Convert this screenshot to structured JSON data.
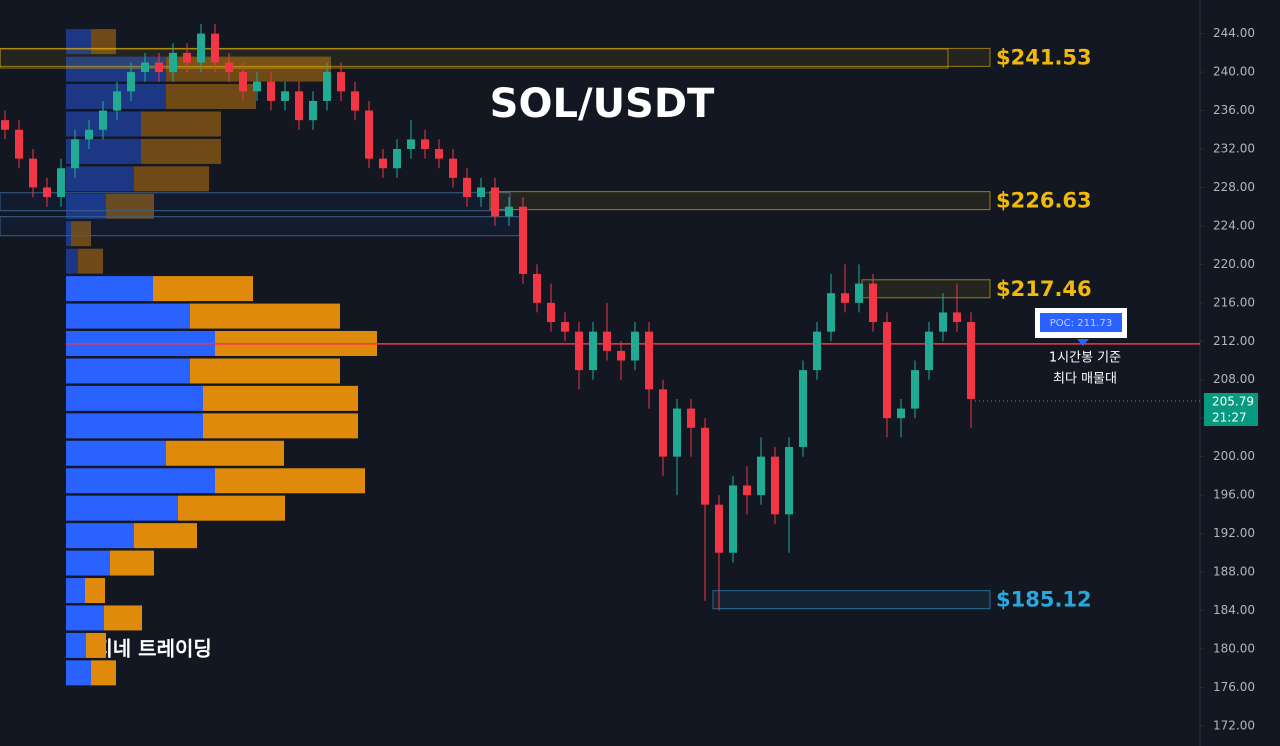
{
  "chart_data": {
    "type": "candlestick",
    "title": "SOL/USDT",
    "watermark": "곰지네 트레이딩",
    "ylim": [
      169.9,
      247.5
    ],
    "yticks": [
      {
        "value": 172,
        "label": "172.00"
      },
      {
        "value": 176,
        "label": "176.00"
      },
      {
        "value": 180,
        "label": "180.00"
      },
      {
        "value": 184,
        "label": "184.00"
      },
      {
        "value": 188,
        "label": "188.00"
      },
      {
        "value": 192,
        "label": "192.00"
      },
      {
        "value": 196,
        "label": "196.00"
      },
      {
        "value": 200,
        "label": "200.00"
      },
      {
        "value": 204,
        "label": "204.00"
      },
      {
        "value": 208,
        "label": "208.00"
      },
      {
        "value": 212,
        "label": "212.00"
      },
      {
        "value": 216,
        "label": "216.00"
      },
      {
        "value": 220,
        "label": "220.00"
      },
      {
        "value": 224,
        "label": "224.00"
      },
      {
        "value": 228,
        "label": "228.00"
      },
      {
        "value": 232,
        "label": "232.00"
      },
      {
        "value": 236,
        "label": "236.00"
      },
      {
        "value": 240,
        "label": "240.00"
      },
      {
        "value": 244,
        "label": "244.00"
      }
    ],
    "grid": false,
    "up_color": "#22ab94",
    "down_color": "#f23645",
    "ohlc": [
      [
        235,
        236,
        233,
        234
      ],
      [
        234,
        235,
        230,
        231
      ],
      [
        231,
        232,
        227,
        228
      ],
      [
        228,
        229,
        226,
        227
      ],
      [
        227,
        231,
        226,
        230
      ],
      [
        230,
        234,
        229,
        233
      ],
      [
        233,
        235,
        232,
        234
      ],
      [
        234,
        237,
        233,
        236
      ],
      [
        236,
        239,
        235,
        238
      ],
      [
        238,
        241,
        237,
        240
      ],
      [
        240,
        242,
        239,
        241
      ],
      [
        241,
        242,
        239,
        240
      ],
      [
        240,
        243,
        239,
        242
      ],
      [
        242,
        243,
        240,
        241
      ],
      [
        241,
        245,
        240,
        244
      ],
      [
        244,
        245,
        240,
        241
      ],
      [
        241,
        242,
        239,
        240
      ],
      [
        240,
        241,
        237,
        238
      ],
      [
        238,
        240,
        237,
        239
      ],
      [
        239,
        240,
        236,
        237
      ],
      [
        237,
        239,
        236,
        238
      ],
      [
        238,
        239,
        234,
        235
      ],
      [
        235,
        238,
        234,
        237
      ],
      [
        237,
        241,
        236,
        240
      ],
      [
        240,
        241,
        237,
        238
      ],
      [
        238,
        239,
        235,
        236
      ],
      [
        236,
        237,
        230,
        231
      ],
      [
        231,
        232,
        229,
        230
      ],
      [
        230,
        233,
        229,
        232
      ],
      [
        232,
        235,
        231,
        233
      ],
      [
        233,
        234,
        231,
        232
      ],
      [
        232,
        233,
        230,
        231
      ],
      [
        231,
        232,
        228,
        229
      ],
      [
        229,
        230,
        226,
        227
      ],
      [
        227,
        229,
        226,
        228
      ],
      [
        228,
        229,
        224,
        225
      ],
      [
        225,
        227,
        224,
        226
      ],
      [
        226,
        227,
        218,
        219
      ],
      [
        219,
        220,
        215,
        216
      ],
      [
        216,
        218,
        213,
        214
      ],
      [
        214,
        215,
        212,
        213
      ],
      [
        213,
        214,
        207,
        209
      ],
      [
        209,
        214,
        208,
        213
      ],
      [
        213,
        216,
        210,
        211
      ],
      [
        211,
        212,
        208,
        210
      ],
      [
        210,
        214,
        209,
        213
      ],
      [
        213,
        214,
        205,
        207
      ],
      [
        207,
        208,
        198,
        200
      ],
      [
        200,
        206,
        196,
        205
      ],
      [
        205,
        206,
        200,
        203
      ],
      [
        203,
        204,
        185,
        195
      ],
      [
        195,
        196,
        184,
        190
      ],
      [
        190,
        198,
        189,
        197
      ],
      [
        197,
        199,
        194,
        196
      ],
      [
        196,
        202,
        195,
        200
      ],
      [
        200,
        201,
        193,
        194
      ],
      [
        194,
        202,
        190,
        201
      ],
      [
        201,
        210,
        200,
        209
      ],
      [
        209,
        214,
        208,
        213
      ],
      [
        213,
        219,
        212,
        217
      ],
      [
        217,
        220,
        215,
        216
      ],
      [
        216,
        220,
        215,
        218
      ],
      [
        218,
        219,
        213,
        214
      ],
      [
        214,
        215,
        202,
        204
      ],
      [
        204,
        206,
        202,
        205
      ],
      [
        205,
        210,
        204,
        209
      ],
      [
        209,
        214,
        208,
        213
      ],
      [
        213,
        217,
        212,
        215
      ],
      [
        215,
        218,
        213,
        214
      ],
      [
        214,
        215,
        203,
        206
      ]
    ],
    "volume_profile": {
      "price": [
        243.17,
        240.31,
        237.46,
        234.6,
        231.75,
        228.9,
        226.04,
        223.19,
        220.33,
        217.48,
        214.62,
        211.77,
        208.91,
        206.06,
        203.2,
        200.35,
        197.49,
        194.64,
        191.78,
        188.93,
        186.07,
        183.22,
        180.36,
        177.51
      ],
      "buy": [
        25,
        100,
        100,
        75,
        75,
        68,
        40,
        5,
        12,
        87,
        124,
        149,
        124,
        137,
        137,
        100,
        149,
        112,
        68,
        44,
        19,
        38,
        20,
        25
      ],
      "sell": [
        25,
        165,
        90,
        80,
        80,
        75,
        48,
        20,
        25,
        100,
        150,
        162,
        150,
        155,
        155,
        118,
        150,
        107,
        63,
        44,
        20,
        38,
        20,
        25
      ],
      "buy_color": "#2962ff",
      "sell_color": "#e08a0b"
    },
    "levels": [
      {
        "value": 241.53,
        "label": "$241.53",
        "color": "#f0b90b"
      },
      {
        "value": 226.63,
        "label": "$226.63",
        "color": "#f0b90b"
      },
      {
        "value": 217.46,
        "label": "$217.46",
        "color": "#f0b90b"
      },
      {
        "value": 185.12,
        "label": "$185.12",
        "color": "#29a8e0"
      }
    ],
    "zones": [
      [
        227.45,
        225.58
      ],
      [
        224.96,
        222.98
      ]
    ],
    "poc": {
      "value": 211.73,
      "label": "POC: 211.73",
      "note": [
        "1시간봉 기준",
        "최다 매물대"
      ]
    },
    "last_price": {
      "value": 205.79,
      "label": "205.79",
      "time": "21:27"
    }
  }
}
